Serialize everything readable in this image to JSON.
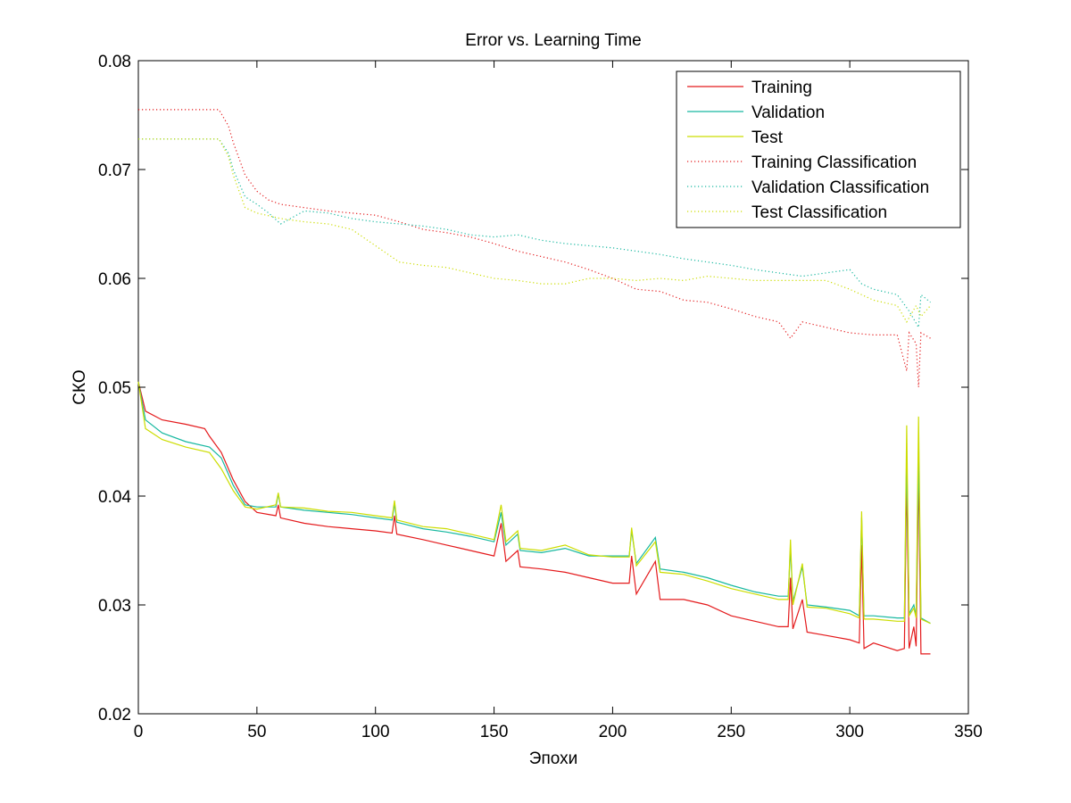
{
  "chart_data": {
    "type": "line",
    "title": "Error vs. Learning Time",
    "xlabel": "Эпохи",
    "ylabel": "СКО",
    "xlim": [
      0,
      350
    ],
    "ylim": [
      0.02,
      0.08
    ],
    "x_ticks": [
      0,
      50,
      100,
      150,
      200,
      250,
      300,
      350
    ],
    "y_ticks": [
      0.02,
      0.03,
      0.04,
      0.05,
      0.06,
      0.07,
      0.08
    ],
    "x_tick_labels": [
      "0",
      "50",
      "100",
      "150",
      "200",
      "250",
      "300",
      "350"
    ],
    "y_tick_labels": [
      "0.02",
      "0.03",
      "0.04",
      "0.05",
      "0.06",
      "0.07",
      "0.08"
    ],
    "grid": false,
    "legend_position": "top-right",
    "series": [
      {
        "name": "Training",
        "color": "#e41a1c",
        "style": "solid",
        "points": [
          [
            0,
            0.0505
          ],
          [
            3,
            0.0478
          ],
          [
            10,
            0.047
          ],
          [
            20,
            0.0466
          ],
          [
            28,
            0.0462
          ],
          [
            30,
            0.0455
          ],
          [
            35,
            0.044
          ],
          [
            40,
            0.0415
          ],
          [
            45,
            0.0395
          ],
          [
            50,
            0.0385
          ],
          [
            58,
            0.0382
          ],
          [
            59,
            0.0392
          ],
          [
            60,
            0.038
          ],
          [
            70,
            0.0375
          ],
          [
            80,
            0.0372
          ],
          [
            90,
            0.037
          ],
          [
            100,
            0.0368
          ],
          [
            107,
            0.0366
          ],
          [
            108,
            0.0382
          ],
          [
            109,
            0.0365
          ],
          [
            120,
            0.036
          ],
          [
            130,
            0.0355
          ],
          [
            140,
            0.035
          ],
          [
            150,
            0.0345
          ],
          [
            153,
            0.0375
          ],
          [
            155,
            0.034
          ],
          [
            160,
            0.035
          ],
          [
            161,
            0.0335
          ],
          [
            170,
            0.0333
          ],
          [
            180,
            0.033
          ],
          [
            190,
            0.0325
          ],
          [
            200,
            0.032
          ],
          [
            207,
            0.032
          ],
          [
            208,
            0.0345
          ],
          [
            210,
            0.031
          ],
          [
            218,
            0.034
          ],
          [
            220,
            0.0305
          ],
          [
            230,
            0.0305
          ],
          [
            240,
            0.03
          ],
          [
            250,
            0.029
          ],
          [
            260,
            0.0285
          ],
          [
            270,
            0.028
          ],
          [
            274,
            0.028
          ],
          [
            275,
            0.0325
          ],
          [
            276,
            0.0278
          ],
          [
            280,
            0.0305
          ],
          [
            282,
            0.0275
          ],
          [
            290,
            0.0272
          ],
          [
            300,
            0.0268
          ],
          [
            304,
            0.0265
          ],
          [
            305,
            0.0355
          ],
          [
            306,
            0.026
          ],
          [
            310,
            0.0265
          ],
          [
            320,
            0.0258
          ],
          [
            323,
            0.026
          ],
          [
            324,
            0.042
          ],
          [
            325,
            0.026
          ],
          [
            327,
            0.028
          ],
          [
            328,
            0.0262
          ],
          [
            329,
            0.0425
          ],
          [
            330,
            0.0255
          ],
          [
            334,
            0.0255
          ]
        ]
      },
      {
        "name": "Validation",
        "color": "#17b8a0",
        "style": "solid",
        "points": [
          [
            0,
            0.0505
          ],
          [
            3,
            0.047
          ],
          [
            10,
            0.0458
          ],
          [
            20,
            0.045
          ],
          [
            30,
            0.0445
          ],
          [
            35,
            0.0435
          ],
          [
            40,
            0.041
          ],
          [
            45,
            0.0392
          ],
          [
            50,
            0.039
          ],
          [
            58,
            0.039
          ],
          [
            59,
            0.0402
          ],
          [
            60,
            0.039
          ],
          [
            70,
            0.0387
          ],
          [
            80,
            0.0385
          ],
          [
            90,
            0.0383
          ],
          [
            100,
            0.038
          ],
          [
            107,
            0.0378
          ],
          [
            108,
            0.0393
          ],
          [
            109,
            0.0376
          ],
          [
            120,
            0.037
          ],
          [
            130,
            0.0367
          ],
          [
            140,
            0.0363
          ],
          [
            150,
            0.0358
          ],
          [
            153,
            0.0385
          ],
          [
            155,
            0.0355
          ],
          [
            160,
            0.0365
          ],
          [
            161,
            0.035
          ],
          [
            170,
            0.0348
          ],
          [
            180,
            0.0352
          ],
          [
            190,
            0.0345
          ],
          [
            200,
            0.0345
          ],
          [
            207,
            0.0345
          ],
          [
            208,
            0.0368
          ],
          [
            210,
            0.0338
          ],
          [
            218,
            0.0362
          ],
          [
            220,
            0.0333
          ],
          [
            230,
            0.033
          ],
          [
            240,
            0.0325
          ],
          [
            250,
            0.0318
          ],
          [
            260,
            0.0312
          ],
          [
            270,
            0.0308
          ],
          [
            274,
            0.0308
          ],
          [
            275,
            0.0352
          ],
          [
            276,
            0.0303
          ],
          [
            280,
            0.0335
          ],
          [
            282,
            0.03
          ],
          [
            290,
            0.0298
          ],
          [
            300,
            0.0295
          ],
          [
            304,
            0.029
          ],
          [
            305,
            0.038
          ],
          [
            306,
            0.029
          ],
          [
            310,
            0.029
          ],
          [
            320,
            0.0288
          ],
          [
            323,
            0.0288
          ],
          [
            324,
            0.0438
          ],
          [
            325,
            0.0292
          ],
          [
            327,
            0.03
          ],
          [
            328,
            0.029
          ],
          [
            329,
            0.044
          ],
          [
            330,
            0.0288
          ],
          [
            334,
            0.0283
          ]
        ]
      },
      {
        "name": "Test",
        "color": "#ccdd00",
        "style": "solid",
        "points": [
          [
            0,
            0.0505
          ],
          [
            3,
            0.0462
          ],
          [
            10,
            0.0452
          ],
          [
            20,
            0.0445
          ],
          [
            30,
            0.044
          ],
          [
            35,
            0.0425
          ],
          [
            40,
            0.0405
          ],
          [
            45,
            0.039
          ],
          [
            50,
            0.0388
          ],
          [
            58,
            0.0392
          ],
          [
            59,
            0.0403
          ],
          [
            60,
            0.039
          ],
          [
            70,
            0.0389
          ],
          [
            80,
            0.0386
          ],
          [
            90,
            0.0385
          ],
          [
            100,
            0.0382
          ],
          [
            107,
            0.038
          ],
          [
            108,
            0.0396
          ],
          [
            109,
            0.0378
          ],
          [
            120,
            0.0372
          ],
          [
            130,
            0.037
          ],
          [
            140,
            0.0365
          ],
          [
            150,
            0.036
          ],
          [
            153,
            0.0392
          ],
          [
            155,
            0.0358
          ],
          [
            160,
            0.0368
          ],
          [
            161,
            0.0352
          ],
          [
            170,
            0.035
          ],
          [
            180,
            0.0355
          ],
          [
            190,
            0.0346
          ],
          [
            200,
            0.0344
          ],
          [
            207,
            0.0344
          ],
          [
            208,
            0.0371
          ],
          [
            210,
            0.0336
          ],
          [
            218,
            0.0358
          ],
          [
            220,
            0.033
          ],
          [
            230,
            0.0328
          ],
          [
            240,
            0.0322
          ],
          [
            250,
            0.0315
          ],
          [
            260,
            0.031
          ],
          [
            270,
            0.0305
          ],
          [
            274,
            0.0305
          ],
          [
            275,
            0.036
          ],
          [
            276,
            0.03
          ],
          [
            280,
            0.0338
          ],
          [
            282,
            0.0298
          ],
          [
            290,
            0.0297
          ],
          [
            300,
            0.0292
          ],
          [
            304,
            0.0288
          ],
          [
            305,
            0.0386
          ],
          [
            306,
            0.0287
          ],
          [
            310,
            0.0287
          ],
          [
            320,
            0.0285
          ],
          [
            323,
            0.0285
          ],
          [
            324,
            0.0465
          ],
          [
            325,
            0.029
          ],
          [
            327,
            0.0297
          ],
          [
            328,
            0.0288
          ],
          [
            329,
            0.0473
          ],
          [
            330,
            0.0287
          ],
          [
            334,
            0.0283
          ]
        ]
      },
      {
        "name": "Training Classification",
        "color": "#e41a1c",
        "style": "dotted",
        "points": [
          [
            0,
            0.0755
          ],
          [
            34,
            0.0755
          ],
          [
            38,
            0.074
          ],
          [
            40,
            0.0725
          ],
          [
            45,
            0.0695
          ],
          [
            50,
            0.068
          ],
          [
            55,
            0.0672
          ],
          [
            60,
            0.0668
          ],
          [
            70,
            0.0665
          ],
          [
            80,
            0.0662
          ],
          [
            90,
            0.066
          ],
          [
            100,
            0.0658
          ],
          [
            110,
            0.0652
          ],
          [
            120,
            0.0645
          ],
          [
            130,
            0.0642
          ],
          [
            140,
            0.0638
          ],
          [
            150,
            0.0632
          ],
          [
            160,
            0.0625
          ],
          [
            170,
            0.062
          ],
          [
            180,
            0.0615
          ],
          [
            190,
            0.0608
          ],
          [
            200,
            0.06
          ],
          [
            210,
            0.059
          ],
          [
            220,
            0.0588
          ],
          [
            230,
            0.058
          ],
          [
            240,
            0.0578
          ],
          [
            250,
            0.0572
          ],
          [
            260,
            0.0565
          ],
          [
            270,
            0.056
          ],
          [
            275,
            0.0545
          ],
          [
            280,
            0.056
          ],
          [
            290,
            0.0555
          ],
          [
            300,
            0.055
          ],
          [
            310,
            0.0548
          ],
          [
            320,
            0.0548
          ],
          [
            324,
            0.0515
          ],
          [
            325,
            0.055
          ],
          [
            328,
            0.054
          ],
          [
            329,
            0.05
          ],
          [
            330,
            0.055
          ],
          [
            334,
            0.0545
          ]
        ]
      },
      {
        "name": "Validation Classification",
        "color": "#17b8a0",
        "style": "dotted",
        "points": [
          [
            0,
            0.0728
          ],
          [
            34,
            0.0728
          ],
          [
            38,
            0.0715
          ],
          [
            40,
            0.07
          ],
          [
            45,
            0.0675
          ],
          [
            50,
            0.0668
          ],
          [
            55,
            0.066
          ],
          [
            60,
            0.065
          ],
          [
            70,
            0.0662
          ],
          [
            80,
            0.066
          ],
          [
            90,
            0.0655
          ],
          [
            100,
            0.0652
          ],
          [
            110,
            0.065
          ],
          [
            120,
            0.0648
          ],
          [
            130,
            0.0645
          ],
          [
            140,
            0.064
          ],
          [
            150,
            0.0638
          ],
          [
            160,
            0.064
          ],
          [
            170,
            0.0635
          ],
          [
            180,
            0.0632
          ],
          [
            190,
            0.063
          ],
          [
            200,
            0.0628
          ],
          [
            210,
            0.0625
          ],
          [
            220,
            0.0622
          ],
          [
            230,
            0.0618
          ],
          [
            240,
            0.0615
          ],
          [
            250,
            0.0612
          ],
          [
            260,
            0.0608
          ],
          [
            270,
            0.0605
          ],
          [
            280,
            0.0602
          ],
          [
            290,
            0.0605
          ],
          [
            300,
            0.0608
          ],
          [
            305,
            0.0595
          ],
          [
            310,
            0.059
          ],
          [
            320,
            0.0585
          ],
          [
            325,
            0.057
          ],
          [
            329,
            0.0555
          ],
          [
            330,
            0.0585
          ],
          [
            334,
            0.0578
          ]
        ]
      },
      {
        "name": "Test Classification",
        "color": "#ccdd00",
        "style": "dotted",
        "points": [
          [
            0,
            0.0728
          ],
          [
            34,
            0.0728
          ],
          [
            38,
            0.0712
          ],
          [
            40,
            0.0695
          ],
          [
            45,
            0.0665
          ],
          [
            50,
            0.066
          ],
          [
            60,
            0.0655
          ],
          [
            70,
            0.0652
          ],
          [
            80,
            0.065
          ],
          [
            90,
            0.0645
          ],
          [
            100,
            0.063
          ],
          [
            110,
            0.0615
          ],
          [
            120,
            0.0612
          ],
          [
            130,
            0.061
          ],
          [
            140,
            0.0605
          ],
          [
            150,
            0.06
          ],
          [
            160,
            0.0598
          ],
          [
            170,
            0.0595
          ],
          [
            180,
            0.0595
          ],
          [
            190,
            0.06
          ],
          [
            200,
            0.06
          ],
          [
            210,
            0.0598
          ],
          [
            220,
            0.06
          ],
          [
            230,
            0.0598
          ],
          [
            240,
            0.0602
          ],
          [
            250,
            0.06
          ],
          [
            260,
            0.0598
          ],
          [
            270,
            0.0598
          ],
          [
            280,
            0.0598
          ],
          [
            290,
            0.0598
          ],
          [
            300,
            0.059
          ],
          [
            310,
            0.058
          ],
          [
            320,
            0.0575
          ],
          [
            324,
            0.056
          ],
          [
            328,
            0.0575
          ],
          [
            330,
            0.0565
          ],
          [
            334,
            0.0575
          ]
        ]
      }
    ]
  }
}
